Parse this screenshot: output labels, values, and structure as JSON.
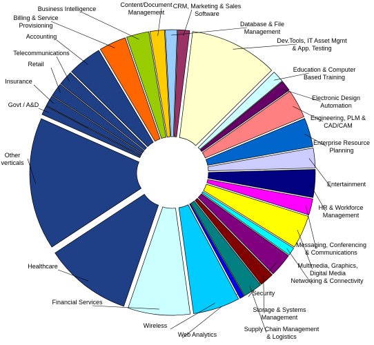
{
  "chart_data": {
    "type": "pie",
    "title": "",
    "exploded": true,
    "start": "top, clockwise",
    "slices": [
      {
        "label": "CRM, Marketing & Sales Software",
        "value": 1.3,
        "color": "#993366"
      },
      {
        "label": "Database & File Management",
        "value": 0.0,
        "color": "#cccccc"
      },
      {
        "label": "Dev.Tools, IT Asset Mgmt & App. Testing",
        "value": 9.8,
        "color": "#ffffcc"
      },
      {
        "label": "Education & Computer Based Training",
        "value": 1.3,
        "color": "#ccffff"
      },
      {
        "label": "Electronic Design Automation",
        "value": 1.2,
        "color": "#660066"
      },
      {
        "label": "Engineering, PLM & CAD/CAM",
        "value": 3.2,
        "color": "#ff8080"
      },
      {
        "label": "Enterprise Resource Planning",
        "value": 3.2,
        "color": "#0066cc"
      },
      {
        "label": "Entertainment",
        "value": 2.2,
        "color": "#ccccff"
      },
      {
        "label": "HR & Workforce Management",
        "value": 3.1,
        "color": "#000080"
      },
      {
        "label": "Messaging, Conferencing & Communications",
        "value": 1.8,
        "color": "#ff00ff"
      },
      {
        "label": "Multimedia, Graphics, Digital Media",
        "value": 3.7,
        "color": "#ffff00"
      },
      {
        "label": "Networking & Connectivity",
        "value": 0.9,
        "color": "#00ffff"
      },
      {
        "label": "Security",
        "value": 2.6,
        "color": "#800080"
      },
      {
        "label": "Storage & Systems Management",
        "value": 1.6,
        "color": "#800000"
      },
      {
        "label": "Supply Chain Management & Logistics",
        "value": 2.1,
        "color": "#008080"
      },
      {
        "label": "Web Analytics",
        "value": 0.5,
        "color": "#0000ff"
      },
      {
        "label": "Wireless",
        "value": 5.2,
        "color": "#00ccff"
      },
      {
        "label": "Financial Services",
        "value": 6.9,
        "color": "#ccffff"
      },
      {
        "label": "Healthcare",
        "value": 9.7,
        "color": "#1f3f87"
      },
      {
        "label": "Other verticals",
        "value": 14.7,
        "color": "#1f3f87"
      },
      {
        "label": "Govt / A&D",
        "value": 1.0,
        "color": "#1f3f87"
      },
      {
        "label": "Insurance",
        "value": 1.2,
        "color": "#1f3f87"
      },
      {
        "label": "Retail",
        "value": 1.5,
        "color": "#1f3f87"
      },
      {
        "label": "Telecommunications",
        "value": 1.6,
        "color": "#1f3f87"
      },
      {
        "label": "Accounting",
        "value": 3.8,
        "color": "#1f3f87"
      },
      {
        "label": "Billing & Service Provisioning",
        "value": 3.0,
        "color": "#ff6600"
      },
      {
        "label": "Business Intelligence",
        "value": 2.5,
        "color": "#99cc00"
      },
      {
        "label": "Content/Document Management",
        "value": 1.6,
        "color": "#ffcc00"
      },
      {
        "label": "Database & File Management",
        "value": 1.3,
        "color": "#99ccff"
      }
    ]
  },
  "labels": [
    {
      "lines": [
        "CRM, Marketing & Sales",
        "Software"
      ]
    },
    {
      "lines": [
        "Database & File",
        "Management"
      ]
    },
    {
      "lines": [
        "Dev.Tools, IT Asset Mgmt",
        "& App. Testing"
      ]
    },
    {
      "lines": [
        "Education & Computer",
        "Based Training"
      ]
    },
    {
      "lines": [
        "Electronic Design",
        "Automation"
      ]
    },
    {
      "lines": [
        "Engineering, PLM &",
        "CAD/CAM"
      ]
    },
    {
      "lines": [
        "Enterprise Resource",
        "Planning"
      ]
    },
    {
      "lines": [
        "Entertainment"
      ]
    },
    {
      "lines": [
        "HR & Workforce",
        "Management"
      ]
    },
    {
      "lines": [
        "Messaging, Conferencing",
        "& Communications"
      ]
    },
    {
      "lines": [
        "Multimedia, Graphics,",
        "Digital Media"
      ]
    },
    {
      "lines": [
        "Networking & Connectivity"
      ]
    },
    {
      "lines": [
        "Security"
      ]
    },
    {
      "lines": [
        "Storage & Systems",
        "Management"
      ]
    },
    {
      "lines": [
        "Supply Chain Management",
        "& Logistics"
      ]
    },
    {
      "lines": [
        "Web Analytics"
      ]
    },
    {
      "lines": [
        "Wireless"
      ]
    },
    {
      "lines": [
        "Financial Services"
      ]
    },
    {
      "lines": [
        "Healthcare"
      ]
    },
    {
      "lines": [
        "Other",
        "verticals"
      ]
    },
    {
      "lines": [
        "Govt / A&D"
      ]
    },
    {
      "lines": [
        "Insurance"
      ]
    },
    {
      "lines": [
        "Retail"
      ]
    },
    {
      "lines": [
        "Telecommunications"
      ]
    },
    {
      "lines": [
        "Accounting"
      ]
    },
    {
      "lines": [
        "Billing & Service",
        "Provisioning"
      ]
    },
    {
      "lines": [
        "Business Intelligence"
      ]
    },
    {
      "lines": [
        "Content/Document",
        "Management"
      ]
    }
  ]
}
